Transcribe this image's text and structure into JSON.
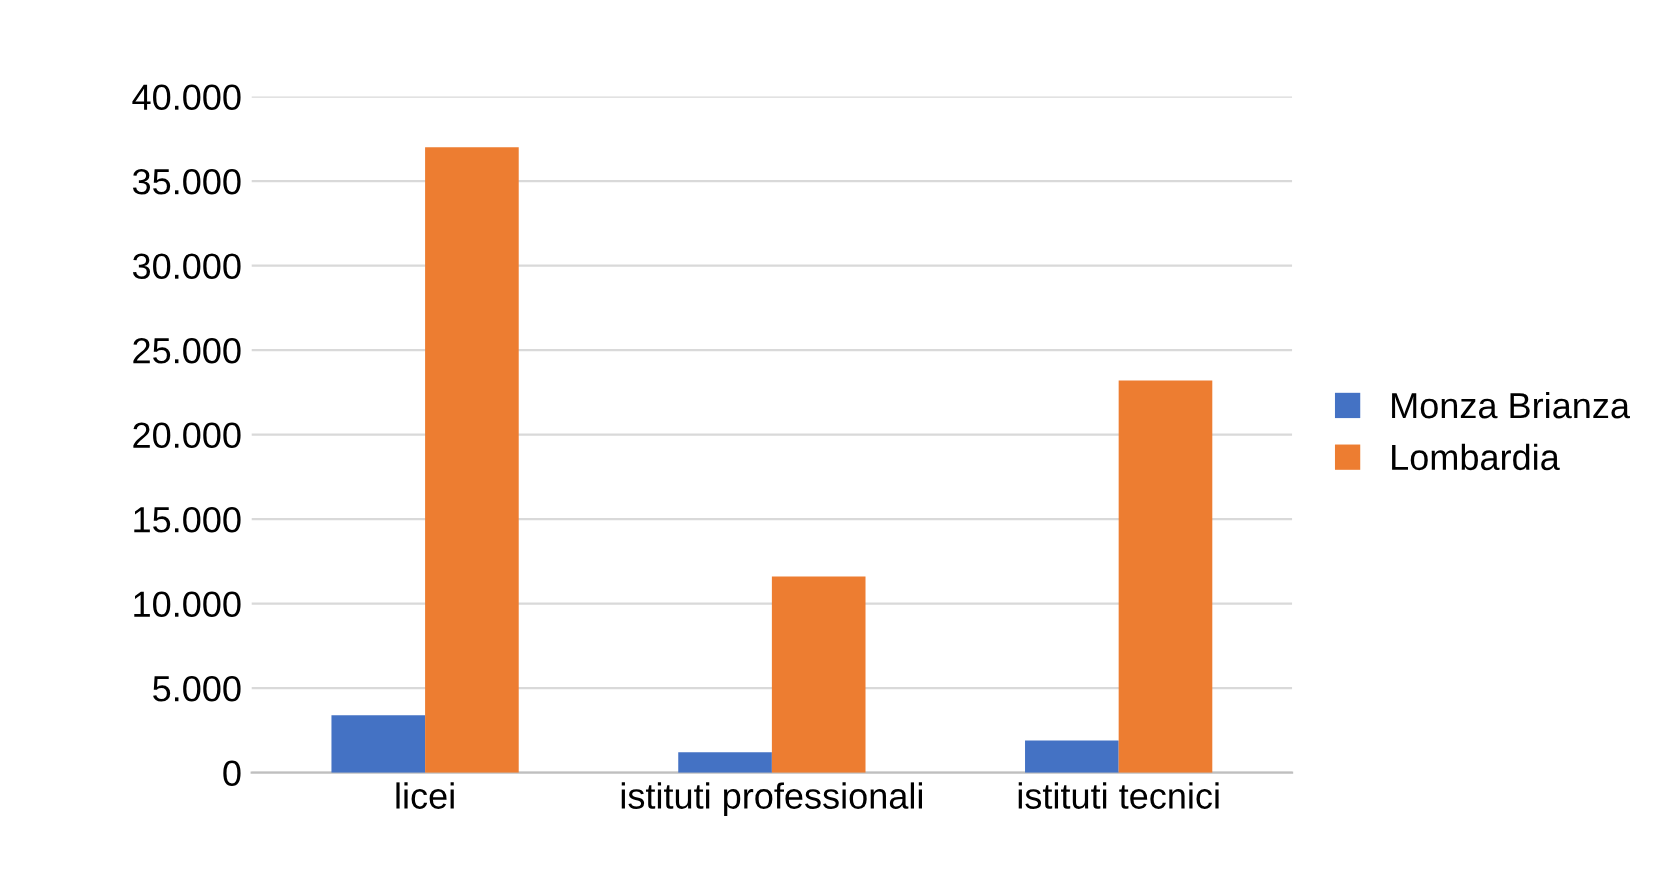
{
  "chart_data": {
    "type": "bar",
    "categories": [
      "licei",
      "istituti professionali",
      "istituti tecnici"
    ],
    "series": [
      {
        "name": "Monza Brianza",
        "color": "#4472c4",
        "values": [
          3400,
          1200,
          1900
        ]
      },
      {
        "name": "Lombardia",
        "color": "#ed7d31",
        "values": [
          37000,
          11600,
          23200
        ]
      }
    ],
    "ylim": [
      0,
      40000
    ],
    "yticks": [
      {
        "value": 0,
        "label": "0"
      },
      {
        "value": 5000,
        "label": "5.000"
      },
      {
        "value": 10000,
        "label": "10.000"
      },
      {
        "value": 15000,
        "label": "15.000"
      },
      {
        "value": 20000,
        "label": "20.000"
      },
      {
        "value": 25000,
        "label": "25.000"
      },
      {
        "value": 30000,
        "label": "30.000"
      },
      {
        "value": 35000,
        "label": "35.000"
      },
      {
        "value": 40000,
        "label": "40.000"
      }
    ],
    "grid": "y",
    "legend": "right"
  }
}
